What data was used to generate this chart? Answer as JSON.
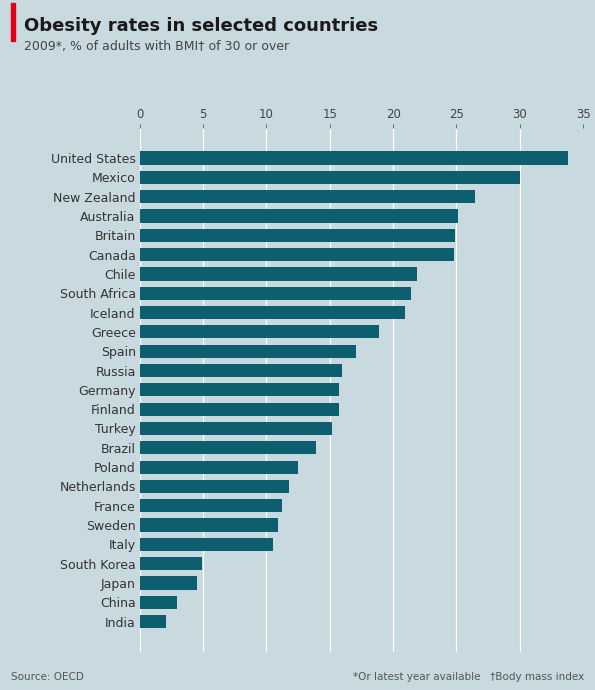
{
  "title": "Obesity rates in selected countries",
  "subtitle": "2009*, % of adults with BMI† of 30 or over",
  "source_left": "Source: OECD",
  "source_right": "*Or latest year available   †Body mass index",
  "bar_color": "#0d5e6e",
  "background_color": "#c9d9e0",
  "categories": [
    "United States",
    "Mexico",
    "New Zealand",
    "Australia",
    "Britain",
    "Canada",
    "Chile",
    "South Africa",
    "Iceland",
    "Greece",
    "Spain",
    "Russia",
    "Germany",
    "Finland",
    "Turkey",
    "Brazil",
    "Poland",
    "Netherlands",
    "France",
    "Sweden",
    "Italy",
    "South Korea",
    "Japan",
    "China",
    "India"
  ],
  "values": [
    33.8,
    30.0,
    26.5,
    25.1,
    24.9,
    24.8,
    21.9,
    21.4,
    20.9,
    18.9,
    17.1,
    16.0,
    15.7,
    15.7,
    15.2,
    13.9,
    12.5,
    11.8,
    11.2,
    10.9,
    10.5,
    4.9,
    4.5,
    2.9,
    2.1
  ],
  "xlim": [
    0,
    35
  ],
  "xticks": [
    0,
    5,
    10,
    15,
    20,
    25,
    30,
    35
  ],
  "title_fontsize": 13,
  "subtitle_fontsize": 9,
  "tick_fontsize": 8.5,
  "label_fontsize": 9,
  "source_fontsize": 7.5,
  "red_accent_color": "#e2001a"
}
